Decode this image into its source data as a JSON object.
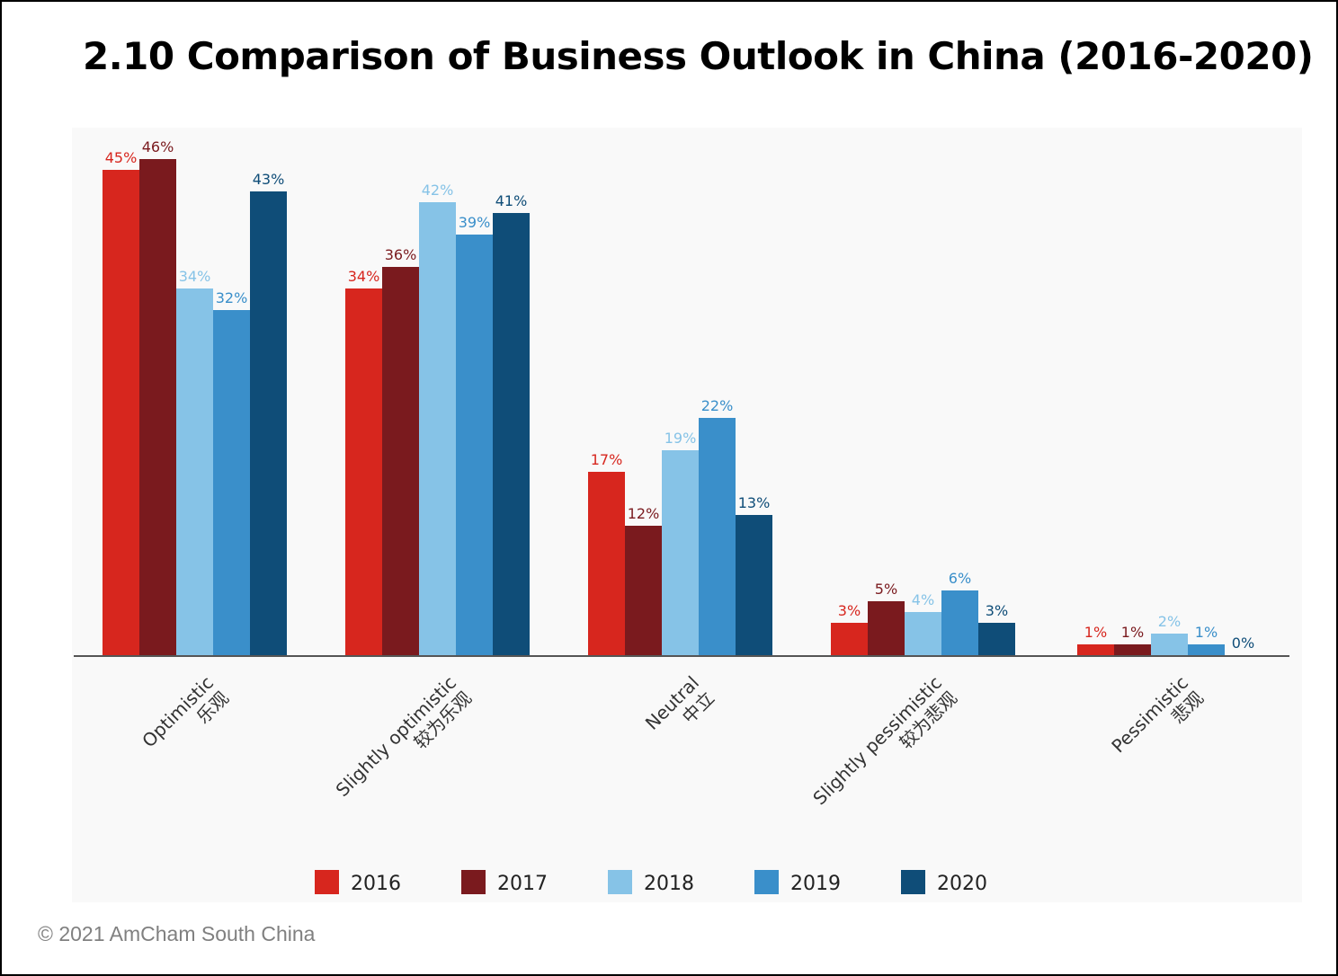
{
  "title": "2.10 Comparison of Business Outlook in China (2016-2020)",
  "copyright": "© 2021 AmCham South China",
  "chart_data": {
    "type": "bar",
    "title": "2.10 Comparison of Business Outlook in China (2016-2020)",
    "categories": [
      {
        "en": "Optimistic",
        "zh": "乐观"
      },
      {
        "en": "Slightly optimistic",
        "zh": "较为乐观"
      },
      {
        "en": "Neutral",
        "zh": "中立"
      },
      {
        "en": "Slightly pessimistic",
        "zh": "较为悲观"
      },
      {
        "en": "Pessimistic",
        "zh": "悲观"
      }
    ],
    "series": [
      {
        "name": "2016",
        "color": "#d7261e",
        "values": [
          45,
          34,
          17,
          3,
          1
        ],
        "labels": [
          "45%",
          "34%",
          "17%",
          "3%",
          "1%"
        ]
      },
      {
        "name": "2017",
        "color": "#7a1a1e",
        "values": [
          46,
          36,
          12,
          5,
          1
        ],
        "labels": [
          "46%",
          "36%",
          "12%",
          "5%",
          "1%"
        ]
      },
      {
        "name": "2018",
        "color": "#86c3e7",
        "values": [
          34,
          42,
          19,
          4,
          2
        ],
        "labels": [
          "34%",
          "42%",
          "19%",
          "4%",
          "2%"
        ]
      },
      {
        "name": "2019",
        "color": "#3a8fca",
        "values": [
          32,
          39,
          22,
          6,
          1
        ],
        "labels": [
          "32%",
          "39%",
          "22%",
          "6%",
          "1%"
        ]
      },
      {
        "name": "2020",
        "color": "#0f4d78",
        "values": [
          43,
          41,
          13,
          3,
          0
        ],
        "labels": [
          "43%",
          "41%",
          "13%",
          "3%",
          "0%"
        ]
      }
    ],
    "ylim": [
      0,
      50
    ],
    "grid": false,
    "legend_position": "bottom"
  }
}
